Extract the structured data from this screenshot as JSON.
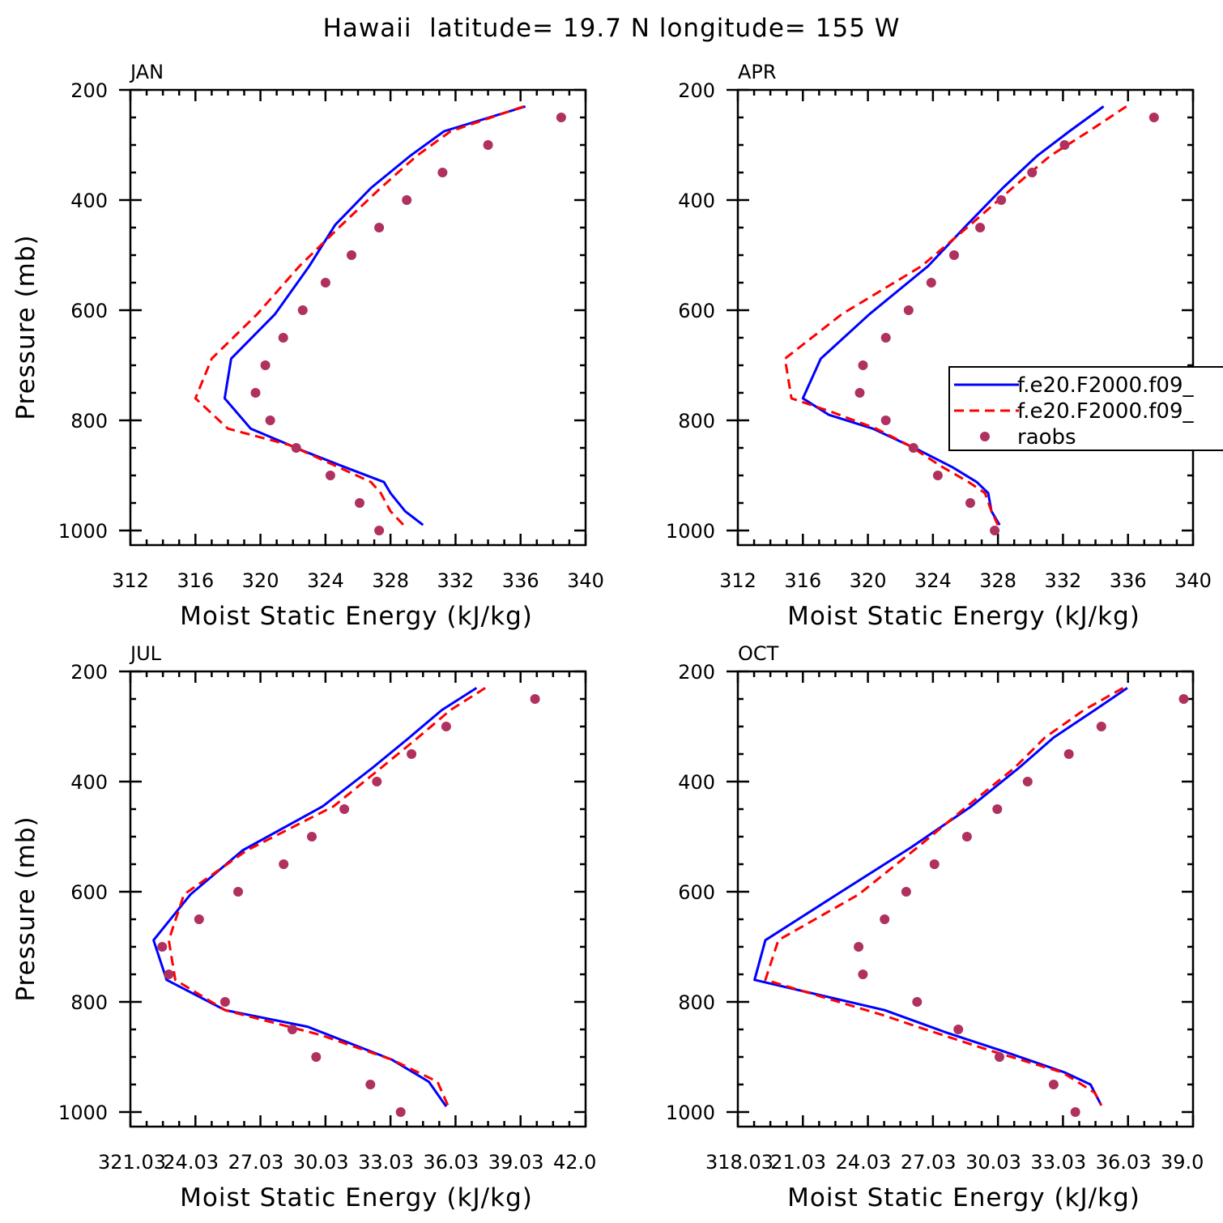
{
  "figure": {
    "title": "Hawaii  latitude= 19.7 N longitude= 155 W",
    "colors": {
      "model_a": "#0000ff",
      "model_b": "#ff0000",
      "raobs": "#b03060"
    }
  },
  "legend": {
    "entries": [
      {
        "label": "f.e20.F2000.f09_",
        "style": "solid",
        "color": "#0000ff"
      },
      {
        "label": "f.e20.F2000.f09_",
        "style": "dashed",
        "color": "#ff0000"
      },
      {
        "label": "raobs",
        "style": "marker",
        "color": "#b03060"
      }
    ],
    "placement": "right, APR panel (clipped)"
  },
  "chart_data": [
    {
      "type": "line",
      "panel": "JAN",
      "title": "JAN",
      "xlabel": "Moist Static Energy (kJ/kg)",
      "ylabel": "Pressure (mb)",
      "xlim": [
        312,
        340
      ],
      "ylim": [
        1000,
        200
      ],
      "x_tick_labels": [
        "312",
        "316",
        "320",
        "324",
        "328",
        "332",
        "336",
        "340"
      ],
      "y_tick_labels": [
        "200",
        "400",
        "600",
        "800",
        "1000"
      ],
      "series": [
        {
          "name": "f.e20.F2000.f09_",
          "style": "solid",
          "color": "#0000ff",
          "points": [
            [
              336.3,
              230
            ],
            [
              331.3,
              275
            ],
            [
              329.2,
              320
            ],
            [
              326.8,
              378
            ],
            [
              324.6,
              445
            ],
            [
              323.0,
              520
            ],
            [
              320.9,
              607
            ],
            [
              318.2,
              688
            ],
            [
              317.8,
              760
            ],
            [
              319.4,
              815
            ],
            [
              322.6,
              855
            ],
            [
              325.2,
              885
            ],
            [
              327.6,
              912
            ],
            [
              328.0,
              932
            ],
            [
              328.9,
              965
            ],
            [
              330.0,
              990
            ]
          ]
        },
        {
          "name": "f.e20.F2000.f09_",
          "style": "dashed",
          "color": "#ff0000",
          "points": [
            [
              336.2,
              230
            ],
            [
              331.7,
              275
            ],
            [
              329.6,
              320
            ],
            [
              327.4,
              378
            ],
            [
              325.0,
              445
            ],
            [
              322.4,
              520
            ],
            [
              319.8,
              607
            ],
            [
              317.0,
              688
            ],
            [
              316.0,
              760
            ],
            [
              318.0,
              815
            ],
            [
              321.8,
              845
            ],
            [
              324.8,
              885
            ],
            [
              326.8,
              912
            ],
            [
              327.4,
              932
            ],
            [
              328.0,
              965
            ],
            [
              328.8,
              990
            ]
          ]
        }
      ],
      "raobs": [
        [
          338.5,
          250
        ],
        [
          334.0,
          300
        ],
        [
          331.2,
          350
        ],
        [
          329.0,
          400
        ],
        [
          327.3,
          450
        ],
        [
          325.6,
          500
        ],
        [
          324.0,
          550
        ],
        [
          322.6,
          600
        ],
        [
          321.4,
          650
        ],
        [
          320.3,
          700
        ],
        [
          319.7,
          750
        ],
        [
          320.6,
          800
        ],
        [
          322.2,
          850
        ],
        [
          324.3,
          900
        ],
        [
          326.1,
          950
        ],
        [
          327.3,
          1000
        ]
      ]
    },
    {
      "type": "line",
      "panel": "APR",
      "title": "APR",
      "xlabel": "Moist Static Energy (kJ/kg)",
      "ylabel": "",
      "xlim": [
        312,
        340
      ],
      "ylim": [
        1000,
        200
      ],
      "x_tick_labels": [
        "312",
        "316",
        "320",
        "324",
        "328",
        "332",
        "336",
        "340"
      ],
      "y_tick_labels": [
        "200",
        "400",
        "600",
        "800",
        "1000"
      ],
      "series": [
        {
          "name": "f.e20.F2000.f09_",
          "style": "solid",
          "color": "#0000ff",
          "points": [
            [
              334.5,
              230
            ],
            [
              332.4,
              275
            ],
            [
              330.4,
              320
            ],
            [
              328.3,
              378
            ],
            [
              326.1,
              445
            ],
            [
              323.7,
              520
            ],
            [
              320.1,
              607
            ],
            [
              317.1,
              688
            ],
            [
              316.0,
              760
            ],
            [
              317.6,
              790
            ],
            [
              320.3,
              815
            ],
            [
              323.2,
              855
            ],
            [
              325.2,
              885
            ],
            [
              326.7,
              912
            ],
            [
              327.4,
              932
            ],
            [
              327.6,
              965
            ],
            [
              328.1,
              990
            ]
          ]
        },
        {
          "name": "f.e20.F2000.f09_",
          "style": "dashed",
          "color": "#ff0000",
          "points": [
            [
              335.9,
              230
            ],
            [
              333.6,
              275
            ],
            [
              331.2,
              320
            ],
            [
              328.9,
              378
            ],
            [
              326.3,
              445
            ],
            [
              323.3,
              520
            ],
            [
              318.4,
              607
            ],
            [
              314.9,
              688
            ],
            [
              315.3,
              760
            ],
            [
              317.8,
              785
            ],
            [
              320.5,
              815
            ],
            [
              322.5,
              845
            ],
            [
              324.6,
              885
            ],
            [
              326.2,
              912
            ],
            [
              327.2,
              932
            ],
            [
              327.6,
              965
            ],
            [
              328.0,
              990
            ]
          ]
        }
      ],
      "raobs": [
        [
          337.6,
          250
        ],
        [
          332.1,
          300
        ],
        [
          330.1,
          350
        ],
        [
          328.2,
          400
        ],
        [
          326.9,
          450
        ],
        [
          325.3,
          500
        ],
        [
          323.9,
          550
        ],
        [
          322.5,
          600
        ],
        [
          321.1,
          650
        ],
        [
          319.7,
          700
        ],
        [
          319.5,
          750
        ],
        [
          321.1,
          800
        ],
        [
          322.8,
          850
        ],
        [
          324.3,
          900
        ],
        [
          326.3,
          950
        ],
        [
          327.8,
          1000
        ]
      ]
    },
    {
      "type": "line",
      "panel": "JUL",
      "title": "JUL",
      "xlabel": "Moist Static Energy (kJ/kg)",
      "ylabel": "Pressure (mb)",
      "xlim": [
        321.03,
        342.03
      ],
      "ylim": [
        1000,
        200
      ],
      "x_tick_labels": [
        "321.03",
        "24.03",
        "27.03",
        "30.03",
        "33.03",
        "36.03",
        "39.03",
        "42.0"
      ],
      "x_tick_label_lead": "321.0",
      "y_tick_labels": [
        "200",
        "400",
        "600",
        "800",
        "1000"
      ],
      "series": [
        {
          "name": "f.e20.F2000.f09_",
          "style": "solid",
          "color": "#0000ff",
          "points": [
            [
              337.0,
              230
            ],
            [
              335.4,
              270
            ],
            [
              333.9,
              320
            ],
            [
              332.2,
              375
            ],
            [
              329.9,
              445
            ],
            [
              326.2,
              525
            ],
            [
              323.8,
              605
            ],
            [
              322.1,
              688
            ],
            [
              322.7,
              760
            ],
            [
              325.4,
              815
            ],
            [
              329.2,
              845
            ],
            [
              333.1,
              905
            ],
            [
              334.8,
              945
            ],
            [
              335.6,
              990
            ]
          ]
        },
        {
          "name": "f.e20.F2000.f09_",
          "style": "dashed",
          "color": "#ff0000",
          "points": [
            [
              337.4,
              230
            ],
            [
              335.8,
              270
            ],
            [
              334.3,
              320
            ],
            [
              332.6,
              375
            ],
            [
              330.4,
              445
            ],
            [
              326.4,
              525
            ],
            [
              323.5,
              605
            ],
            [
              322.8,
              688
            ],
            [
              323.1,
              760
            ],
            [
              325.4,
              815
            ],
            [
              329.8,
              860
            ],
            [
              333.1,
              905
            ],
            [
              335.2,
              945
            ],
            [
              335.7,
              990
            ]
          ]
        }
      ],
      "raobs": [
        [
          339.7,
          250
        ],
        [
          335.6,
          300
        ],
        [
          334.0,
          350
        ],
        [
          332.4,
          400
        ],
        [
          330.9,
          450
        ],
        [
          329.4,
          500
        ],
        [
          328.1,
          550
        ],
        [
          326.0,
          600
        ],
        [
          324.2,
          650
        ],
        [
          322.5,
          700
        ],
        [
          322.8,
          750
        ],
        [
          325.4,
          800
        ],
        [
          328.5,
          850
        ],
        [
          329.6,
          900
        ],
        [
          332.1,
          950
        ],
        [
          333.5,
          1000
        ]
      ]
    },
    {
      "type": "line",
      "panel": "OCT",
      "title": "OCT",
      "xlabel": "Moist Static Energy (kJ/kg)",
      "ylabel": "",
      "xlim": [
        318.03,
        339.03
      ],
      "ylim": [
        1000,
        200
      ],
      "x_tick_labels": [
        "318.03",
        "21.03",
        "24.03",
        "27.03",
        "30.03",
        "33.03",
        "36.03",
        "39.0"
      ],
      "x_tick_label_lead": "318.0",
      "y_tick_labels": [
        "200",
        "400",
        "600",
        "800",
        "1000"
      ],
      "series": [
        {
          "name": "f.e20.F2000.f09_",
          "style": "solid",
          "color": "#0000ff",
          "points": [
            [
              336.0,
              230
            ],
            [
              334.5,
              270
            ],
            [
              332.6,
              320
            ],
            [
              331.0,
              375
            ],
            [
              328.8,
              445
            ],
            [
              326.0,
              520
            ],
            [
              322.6,
              605
            ],
            [
              319.3,
              688
            ],
            [
              318.8,
              760
            ],
            [
              324.8,
              815
            ],
            [
              327.6,
              855
            ],
            [
              330.3,
              890
            ],
            [
              333.1,
              928
            ],
            [
              334.3,
              950
            ],
            [
              334.8,
              988
            ]
          ]
        },
        {
          "name": "f.e20.F2000.f09_",
          "style": "dashed",
          "color": "#ff0000",
          "points": [
            [
              335.8,
              230
            ],
            [
              334.0,
              270
            ],
            [
              332.2,
              320
            ],
            [
              330.8,
              375
            ],
            [
              328.6,
              445
            ],
            [
              326.3,
              520
            ],
            [
              323.6,
              605
            ],
            [
              319.9,
              688
            ],
            [
              319.3,
              760
            ],
            [
              324.8,
              825
            ],
            [
              326.3,
              845
            ],
            [
              329.8,
              890
            ],
            [
              333.0,
              928
            ],
            [
              334.5,
              965
            ],
            [
              334.8,
              988
            ]
          ]
        }
      ],
      "raobs": [
        [
          338.6,
          250
        ],
        [
          334.8,
          300
        ],
        [
          333.3,
          350
        ],
        [
          331.4,
          400
        ],
        [
          330.0,
          450
        ],
        [
          328.6,
          500
        ],
        [
          327.1,
          550
        ],
        [
          325.8,
          600
        ],
        [
          324.8,
          650
        ],
        [
          323.6,
          700
        ],
        [
          323.8,
          750
        ],
        [
          326.3,
          800
        ],
        [
          328.2,
          850
        ],
        [
          330.1,
          900
        ],
        [
          332.6,
          950
        ],
        [
          333.6,
          1000
        ]
      ]
    }
  ]
}
